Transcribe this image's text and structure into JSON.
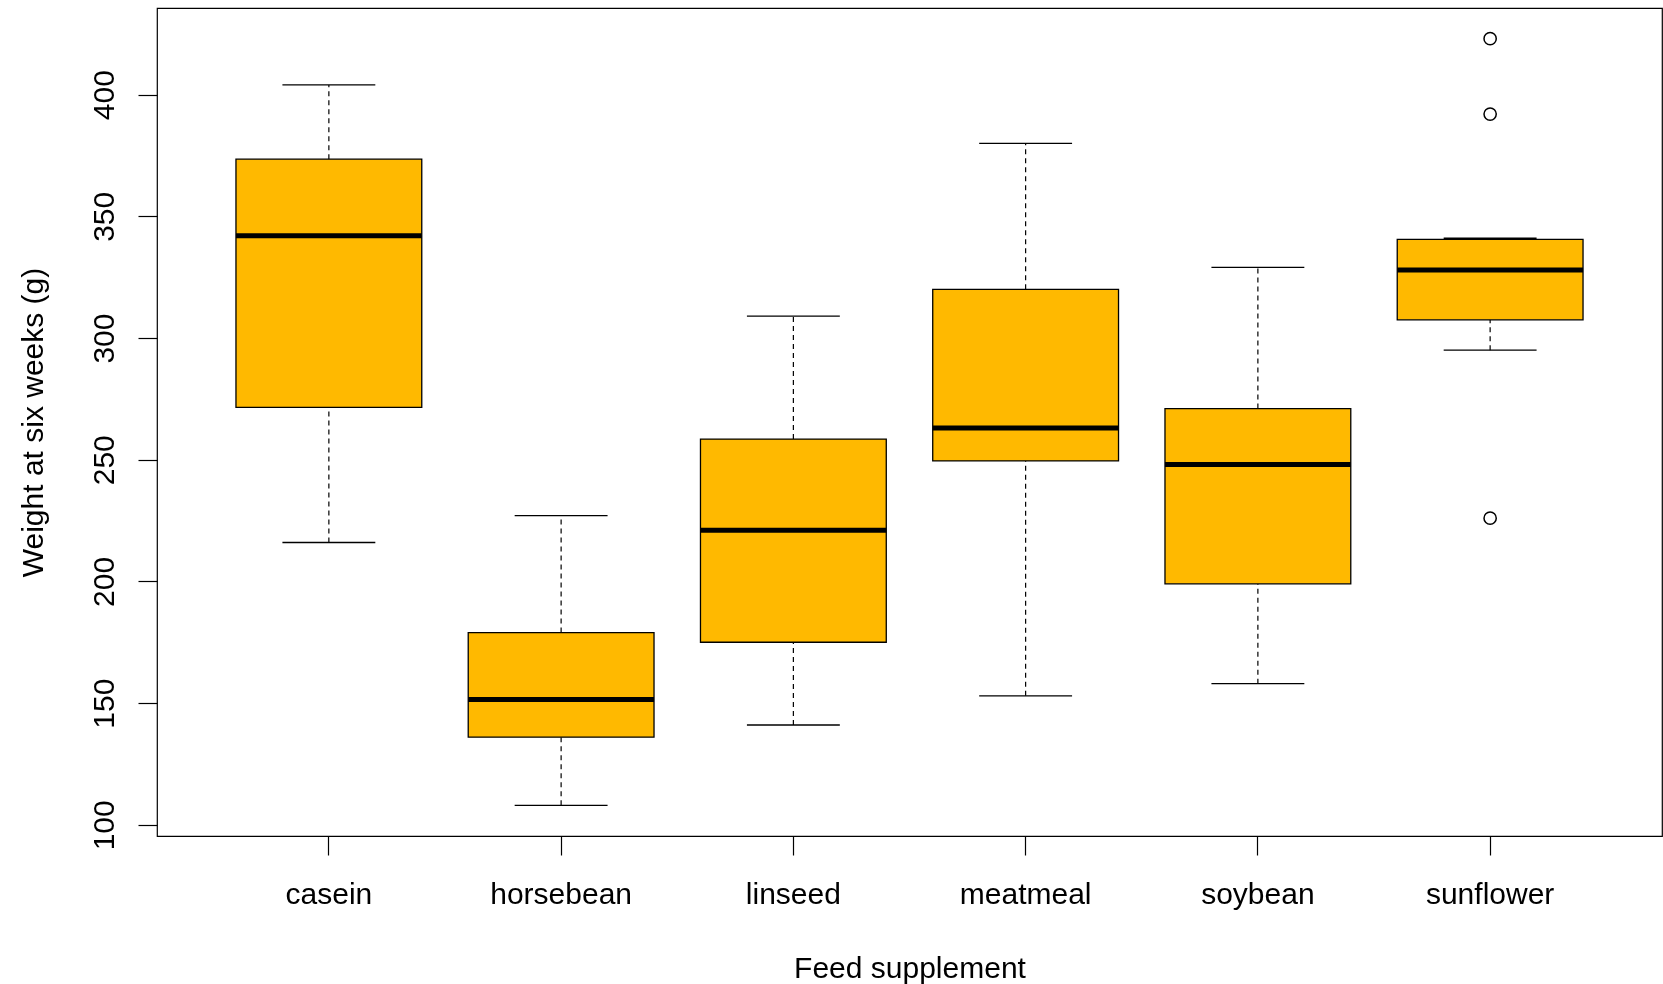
{
  "chart_data": {
    "type": "box",
    "xlabel": "Feed supplement",
    "ylabel": "Weight at six weeks (g)",
    "categories": [
      "casein",
      "horsebean",
      "linseed",
      "meatmeal",
      "soybean",
      "sunflower"
    ],
    "boxes": [
      {
        "low": 216,
        "q1": 271.5,
        "median": 342,
        "q3": 373.5,
        "high": 404
      },
      {
        "low": 108,
        "q1": 136,
        "median": 151.5,
        "q3": 179,
        "high": 227
      },
      {
        "low": 141,
        "q1": 175,
        "median": 221,
        "q3": 258.5,
        "high": 309
      },
      {
        "low": 153,
        "q1": 249.5,
        "median": 263,
        "q3": 320,
        "high": 380
      },
      {
        "low": 158,
        "q1": 199,
        "median": 248,
        "q3": 271,
        "high": 329
      },
      {
        "low": 295,
        "q1": 307.5,
        "median": 328,
        "q3": 340.5,
        "high": 341,
        "outliers": [
          226,
          392,
          423
        ]
      }
    ],
    "color": "#ffb900",
    "ylim": [
      95.4,
      435.6
    ],
    "yticks": [
      100,
      150,
      200,
      250,
      300,
      350,
      400
    ]
  }
}
